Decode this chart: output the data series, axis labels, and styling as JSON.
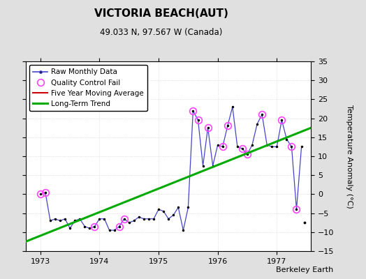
{
  "title": "VICTORIA BEACH(AUT)",
  "subtitle": "49.033 N, 97.567 W (Canada)",
  "ylabel": "Temperature Anomaly (°C)",
  "credit": "Berkeley Earth",
  "ylim": [
    -15,
    35
  ],
  "yticks": [
    -15,
    -10,
    -5,
    0,
    5,
    10,
    15,
    20,
    25,
    30,
    35
  ],
  "xlim_start": 1972.75,
  "xlim_end": 1977.58,
  "bg_color": "#e0e0e0",
  "plot_bg_color": "#ffffff",
  "raw_x": [
    1973.0,
    1973.083,
    1973.167,
    1973.25,
    1973.333,
    1973.417,
    1973.5,
    1973.583,
    1973.667,
    1973.75,
    1973.833,
    1973.917,
    1974.0,
    1974.083,
    1974.167,
    1974.25,
    1974.333,
    1974.417,
    1974.5,
    1974.583,
    1974.667,
    1974.75,
    1974.833,
    1974.917,
    1975.0,
    1975.083,
    1975.167,
    1975.25,
    1975.333,
    1975.417,
    1975.5,
    1975.583,
    1975.667,
    1975.75,
    1975.833,
    1975.917,
    1976.0,
    1976.083,
    1976.167,
    1976.25,
    1976.333,
    1976.417,
    1976.5,
    1976.583,
    1976.667,
    1976.75,
    1976.833,
    1976.917,
    1977.0,
    1977.083,
    1977.167,
    1977.25,
    1977.333,
    1977.417
  ],
  "raw_y": [
    0.0,
    0.5,
    -7.0,
    -6.5,
    -7.0,
    -6.5,
    -9.0,
    -7.0,
    -6.5,
    -8.5,
    -9.0,
    -8.5,
    -6.5,
    -6.5,
    -9.5,
    -9.5,
    -8.5,
    -6.5,
    -7.5,
    -7.0,
    -6.0,
    -6.5,
    -6.5,
    -6.5,
    -4.0,
    -4.5,
    -6.5,
    -5.5,
    -3.5,
    -9.5,
    -3.5,
    22.0,
    19.5,
    7.5,
    17.5,
    7.5,
    13.0,
    12.5,
    18.0,
    23.0,
    12.5,
    12.0,
    10.5,
    13.0,
    18.5,
    21.0,
    13.0,
    12.5,
    12.5,
    19.5,
    14.5,
    12.5,
    -4.0,
    12.5
  ],
  "qc_fail_x": [
    1973.0,
    1973.083,
    1973.917,
    1974.333,
    1974.417,
    1975.583,
    1975.667,
    1975.833,
    1976.083,
    1976.167,
    1976.417,
    1976.5,
    1976.75,
    1977.083,
    1977.25,
    1977.333
  ],
  "qc_fail_y": [
    0.0,
    0.5,
    -8.5,
    -8.5,
    -6.5,
    22.0,
    19.5,
    17.5,
    12.5,
    18.0,
    12.0,
    10.5,
    21.0,
    19.5,
    12.5,
    -4.0
  ],
  "trend_x": [
    1972.75,
    1977.58
  ],
  "trend_y": [
    -12.5,
    17.5
  ],
  "extra_point_x": [
    1977.47
  ],
  "extra_point_y": [
    -7.5
  ],
  "legend_labels": [
    "Raw Monthly Data",
    "Quality Control Fail",
    "Five Year Moving Average",
    "Long-Term Trend"
  ],
  "xtick_labels": [
    "1973",
    "1974",
    "1975",
    "1976",
    "1977"
  ],
  "xtick_positions": [
    1973,
    1974,
    1975,
    1976,
    1977
  ]
}
